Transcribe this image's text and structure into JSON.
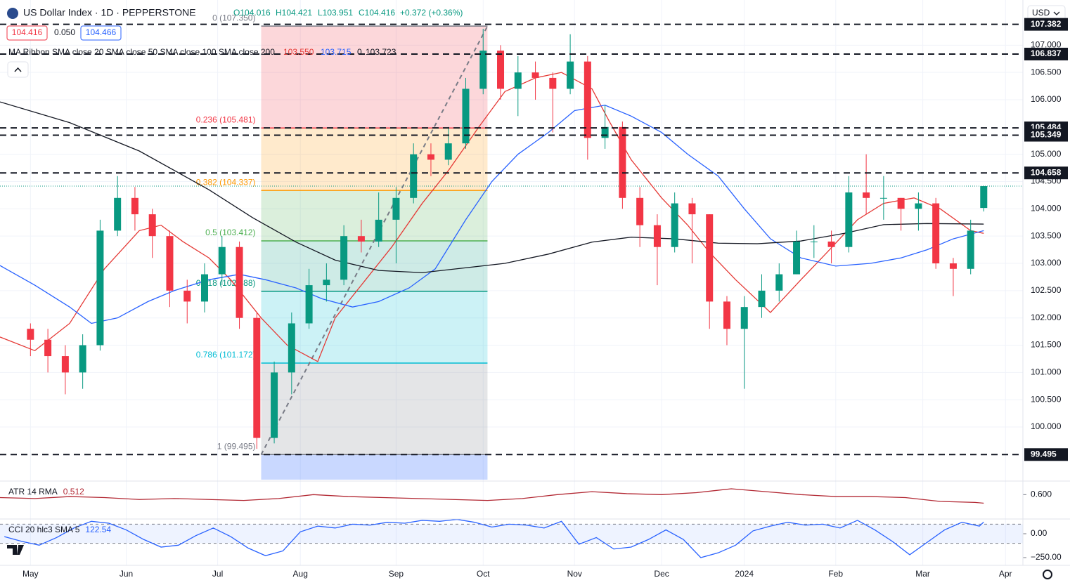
{
  "chart_data": [
    {
      "type": "candlestick",
      "title": "US Dollar Index · 1D · PEPPERSTONE",
      "ohlc_labels": [
        "O104.016",
        "H104.421",
        "L103.951",
        "C104.416",
        "+0.372 (+0.36%)"
      ],
      "quote_labels": [
        "104.416",
        "0.050",
        "104.466"
      ],
      "currency": "USD",
      "ma_legend": "MA Ribbon SMA close 20 SMA close 50 SMA close 100 SMA close 200",
      "ma_legend_values": [
        "103.550",
        "103.715",
        "0",
        "103.723"
      ],
      "up_color": "#089981",
      "down_color": "#f23645",
      "xlim": [
        -7,
        228
      ],
      "xticks": [
        {
          "value": 0,
          "label": "May"
        },
        {
          "value": 22,
          "label": "Jun"
        },
        {
          "value": 43,
          "label": "Jul"
        },
        {
          "value": 62,
          "label": "Aug"
        },
        {
          "value": 84,
          "label": "Sep"
        },
        {
          "value": 104,
          "label": "Oct"
        },
        {
          "value": 125,
          "label": "Nov"
        },
        {
          "value": 145,
          "label": "Dec"
        },
        {
          "value": 164,
          "label": "2024"
        },
        {
          "value": 185,
          "label": "Feb"
        },
        {
          "value": 205,
          "label": "Mar"
        },
        {
          "value": 224,
          "label": "Apr"
        }
      ],
      "ylim": [
        99.035,
        107.828
      ],
      "yticks": [
        {
          "value": 100,
          "label": "100.000"
        },
        {
          "value": 100.5,
          "label": "100.500"
        },
        {
          "value": 101,
          "label": "101.000"
        },
        {
          "value": 101.5,
          "label": "101.500"
        },
        {
          "value": 102,
          "label": "102.000"
        },
        {
          "value": 102.5,
          "label": "102.500"
        },
        {
          "value": 103,
          "label": "103.000"
        },
        {
          "value": 103.5,
          "label": "103.500"
        },
        {
          "value": 104,
          "label": "104.000"
        },
        {
          "value": 104.5,
          "label": "104.500"
        },
        {
          "value": 105,
          "label": "105.000"
        },
        {
          "value": 106,
          "label": "106.000"
        },
        {
          "value": 106.5,
          "label": "106.500"
        },
        {
          "value": 107,
          "label": "107.000"
        }
      ],
      "grid": true,
      "x": [
        0,
        4,
        8,
        12,
        16,
        20,
        24,
        28,
        32,
        36,
        40,
        44,
        48,
        52,
        56,
        60,
        64,
        68,
        72,
        76,
        80,
        84,
        88,
        92,
        96,
        100,
        104,
        108,
        112,
        116,
        120,
        124,
        128,
        132,
        136,
        140,
        144,
        148,
        152,
        156,
        160,
        164,
        168,
        172,
        176,
        180,
        184,
        188,
        192,
        196,
        200,
        204,
        208,
        212,
        216,
        219
      ],
      "open": [
        101.8,
        101.6,
        101.3,
        101.0,
        101.5,
        103.6,
        104.2,
        103.9,
        103.5,
        102.5,
        102.3,
        102.8,
        103.3,
        102.0,
        99.8,
        101.0,
        101.9,
        102.6,
        102.7,
        103.5,
        103.4,
        103.8,
        104.2,
        105.0,
        104.9,
        105.2,
        106.2,
        106.9,
        106.2,
        106.5,
        106.4,
        106.2,
        106.7,
        105.3,
        105.5,
        104.2,
        103.7,
        103.3,
        104.1,
        103.9,
        102.3,
        101.8,
        102.2,
        102.5,
        102.8,
        103.4,
        103.4,
        103.3,
        104.3,
        104.2,
        104.2,
        104.0,
        104.1,
        103.0,
        102.9,
        104.016
      ],
      "high": [
        101.9,
        101.8,
        101.5,
        101.7,
        103.8,
        104.6,
        104.4,
        104.0,
        103.6,
        102.7,
        103.0,
        103.5,
        103.4,
        102.1,
        101.2,
        102.1,
        102.9,
        103.0,
        103.7,
        103.8,
        104.3,
        104.4,
        105.2,
        105.2,
        105.5,
        106.4,
        107.3,
        107.0,
        106.8,
        106.7,
        106.5,
        107.2,
        106.8,
        105.9,
        105.6,
        104.4,
        103.9,
        104.3,
        104.2,
        103.9,
        102.4,
        102.4,
        102.8,
        103.0,
        103.6,
        103.7,
        103.6,
        104.6,
        105.0,
        104.6,
        104.2,
        104.3,
        104.2,
        103.1,
        103.8,
        104.421
      ],
      "low": [
        101.3,
        101.0,
        100.6,
        100.7,
        101.4,
        103.5,
        103.6,
        103.1,
        102.2,
        101.9,
        102.1,
        102.6,
        101.8,
        99.6,
        99.7,
        100.6,
        101.8,
        102.3,
        102.6,
        103.2,
        103.3,
        103.0,
        104.1,
        104.6,
        104.8,
        105.1,
        106.1,
        106.0,
        105.7,
        106.0,
        105.4,
        106.1,
        104.9,
        105.1,
        104.0,
        103.3,
        102.6,
        103.2,
        103.0,
        101.8,
        101.5,
        100.7,
        102.0,
        102.3,
        102.8,
        103.1,
        103.0,
        103.2,
        103.9,
        103.8,
        103.6,
        103.6,
        102.9,
        102.4,
        102.8,
        103.951
      ],
      "close": [
        101.6,
        101.3,
        101.0,
        101.5,
        103.6,
        104.2,
        103.9,
        103.5,
        102.5,
        102.3,
        102.8,
        103.3,
        102.0,
        99.8,
        101.0,
        101.9,
        102.6,
        102.7,
        103.5,
        103.4,
        103.8,
        104.2,
        105.0,
        104.9,
        105.2,
        106.2,
        106.9,
        106.2,
        106.5,
        106.4,
        106.2,
        106.7,
        105.3,
        105.5,
        104.2,
        103.7,
        103.3,
        104.1,
        103.9,
        102.3,
        101.8,
        102.2,
        102.5,
        102.8,
        103.4,
        103.4,
        103.3,
        104.3,
        104.2,
        104.2,
        104.0,
        104.1,
        103.0,
        102.9,
        103.6,
        104.416
      ],
      "series": [
        {
          "color": "#e53935",
          "x": [
            -7,
            1,
            9,
            17,
            25,
            30,
            35,
            41,
            46,
            53,
            59,
            66,
            70,
            77,
            83,
            90,
            96,
            103,
            109,
            116,
            122,
            129,
            133,
            138,
            145,
            151,
            156,
            162,
            170,
            177,
            183,
            190,
            196,
            203,
            209,
            216,
            219
          ],
          "values": [
            101.65,
            101.4,
            101.9,
            102.9,
            103.6,
            103.7,
            103.4,
            103.1,
            102.7,
            102.0,
            101.5,
            101.2,
            102.0,
            102.7,
            103.3,
            104.1,
            104.7,
            105.5,
            106.15,
            106.4,
            106.5,
            106.2,
            105.6,
            104.9,
            104.2,
            103.7,
            103.2,
            102.7,
            102.1,
            102.7,
            103.2,
            103.8,
            104.1,
            104.2,
            104.0,
            103.6,
            103.55
          ]
        },
        {
          "color": "#2962ff",
          "x": [
            -7,
            1,
            9,
            14,
            20,
            27,
            33,
            41,
            48,
            54,
            61,
            67,
            74,
            80,
            87,
            93,
            100,
            106,
            112,
            119,
            125,
            132,
            138,
            145,
            151,
            158,
            164,
            170,
            177,
            185,
            193,
            200,
            206,
            212,
            219
          ],
          "values": [
            102.96,
            102.6,
            102.2,
            101.9,
            102.0,
            102.3,
            102.5,
            102.7,
            102.8,
            102.7,
            102.55,
            102.35,
            102.2,
            102.3,
            102.55,
            102.9,
            103.8,
            104.5,
            105.0,
            105.4,
            105.8,
            105.9,
            105.7,
            105.4,
            105.0,
            104.6,
            104.0,
            103.45,
            103.1,
            102.95,
            103.0,
            103.1,
            103.25,
            103.45,
            103.6
          ]
        },
        {
          "color": "#131722",
          "x": [
            -7,
            9,
            25,
            41,
            51,
            61,
            70,
            80,
            90,
            99,
            109,
            119,
            129,
            138,
            148,
            158,
            167,
            177,
            187,
            196,
            206,
            219
          ],
          "values": [
            105.96,
            105.58,
            105.06,
            104.35,
            103.84,
            103.39,
            103.06,
            102.87,
            102.83,
            102.91,
            103.0,
            103.17,
            103.39,
            103.48,
            103.45,
            103.37,
            103.36,
            103.41,
            103.55,
            103.71,
            103.73,
            103.72
          ]
        }
      ],
      "hlines": [
        107.382,
        106.837,
        105.484,
        105.349,
        104.658,
        99.495
      ],
      "fib_levels": [
        {
          "value": 107.35,
          "label": "0 (107.350)",
          "color": "#787b86"
        },
        {
          "value": 105.481,
          "label": "0.236 (105.481)",
          "color": "#f23645"
        },
        {
          "value": 104.337,
          "label": "0.382 (104.337)",
          "color": "#ff9800"
        },
        {
          "value": 103.412,
          "label": "0.5 (103.412)",
          "color": "#4caf50"
        },
        {
          "value": 102.488,
          "label": "0.618 (102.488)",
          "color": "#089981"
        },
        {
          "value": 101.172,
          "label": "0.786 (101.172)",
          "color": "#00bcd4"
        },
        {
          "value": 99.495,
          "label": "1 (99.495)",
          "color": "#787b86"
        }
      ],
      "fib_below_color": "#2962ff",
      "trend_line": {
        "x": [
          53,
          105
        ],
        "values": [
          99.495,
          107.35
        ]
      }
    },
    {
      "type": "line",
      "title": "ATR 14 RMA",
      "value_label": "0.512",
      "color": "#b22833",
      "ylim": [
        0.357,
        0.732
      ],
      "yticks": [
        {
          "value": 0.6,
          "label": "0.600"
        }
      ],
      "x": [
        -7,
        1,
        9,
        17,
        25,
        33,
        41,
        49,
        57,
        65,
        73,
        81,
        89,
        97,
        105,
        113,
        121,
        129,
        137,
        145,
        153,
        161,
        169,
        177,
        185,
        193,
        201,
        209,
        217,
        219
      ],
      "values": [
        0.57,
        0.56,
        0.58,
        0.57,
        0.55,
        0.56,
        0.55,
        0.54,
        0.56,
        0.6,
        0.58,
        0.57,
        0.56,
        0.55,
        0.54,
        0.56,
        0.6,
        0.63,
        0.61,
        0.6,
        0.62,
        0.66,
        0.63,
        0.6,
        0.58,
        0.58,
        0.57,
        0.53,
        0.52,
        0.512
      ]
    },
    {
      "type": "line",
      "title": "CCI 20 hlc3 SMA 5",
      "value_label": "122.54",
      "color": "#2962ff",
      "ylim": [
        -331,
        147
      ],
      "yticks": [
        {
          "value": 0,
          "label": "0.00"
        },
        {
          "value": -250,
          "label": "−250.00"
        }
      ],
      "band": [
        -100,
        100
      ],
      "x": [
        -6,
        -2,
        2,
        6,
        10,
        14,
        18,
        22,
        26,
        30,
        34,
        38,
        42,
        46,
        50,
        54,
        58,
        62,
        66,
        70,
        74,
        78,
        82,
        86,
        90,
        94,
        98,
        102,
        106,
        110,
        114,
        118,
        122,
        126,
        130,
        134,
        138,
        142,
        146,
        150,
        154,
        158,
        162,
        166,
        170,
        174,
        178,
        182,
        186,
        190,
        194,
        198,
        202,
        206,
        210,
        214,
        218,
        219
      ],
      "values": [
        -30,
        -80,
        -120,
        -40,
        60,
        130,
        110,
        40,
        -60,
        -140,
        -120,
        -20,
        60,
        -30,
        -150,
        -230,
        -180,
        20,
        80,
        60,
        100,
        90,
        120,
        110,
        140,
        130,
        150,
        120,
        70,
        100,
        90,
        60,
        130,
        -110,
        -40,
        -160,
        -140,
        -60,
        40,
        -60,
        -250,
        -200,
        -120,
        30,
        80,
        120,
        90,
        100,
        60,
        140,
        40,
        -80,
        -220,
        -90,
        40,
        120,
        80,
        122.54
      ]
    }
  ]
}
